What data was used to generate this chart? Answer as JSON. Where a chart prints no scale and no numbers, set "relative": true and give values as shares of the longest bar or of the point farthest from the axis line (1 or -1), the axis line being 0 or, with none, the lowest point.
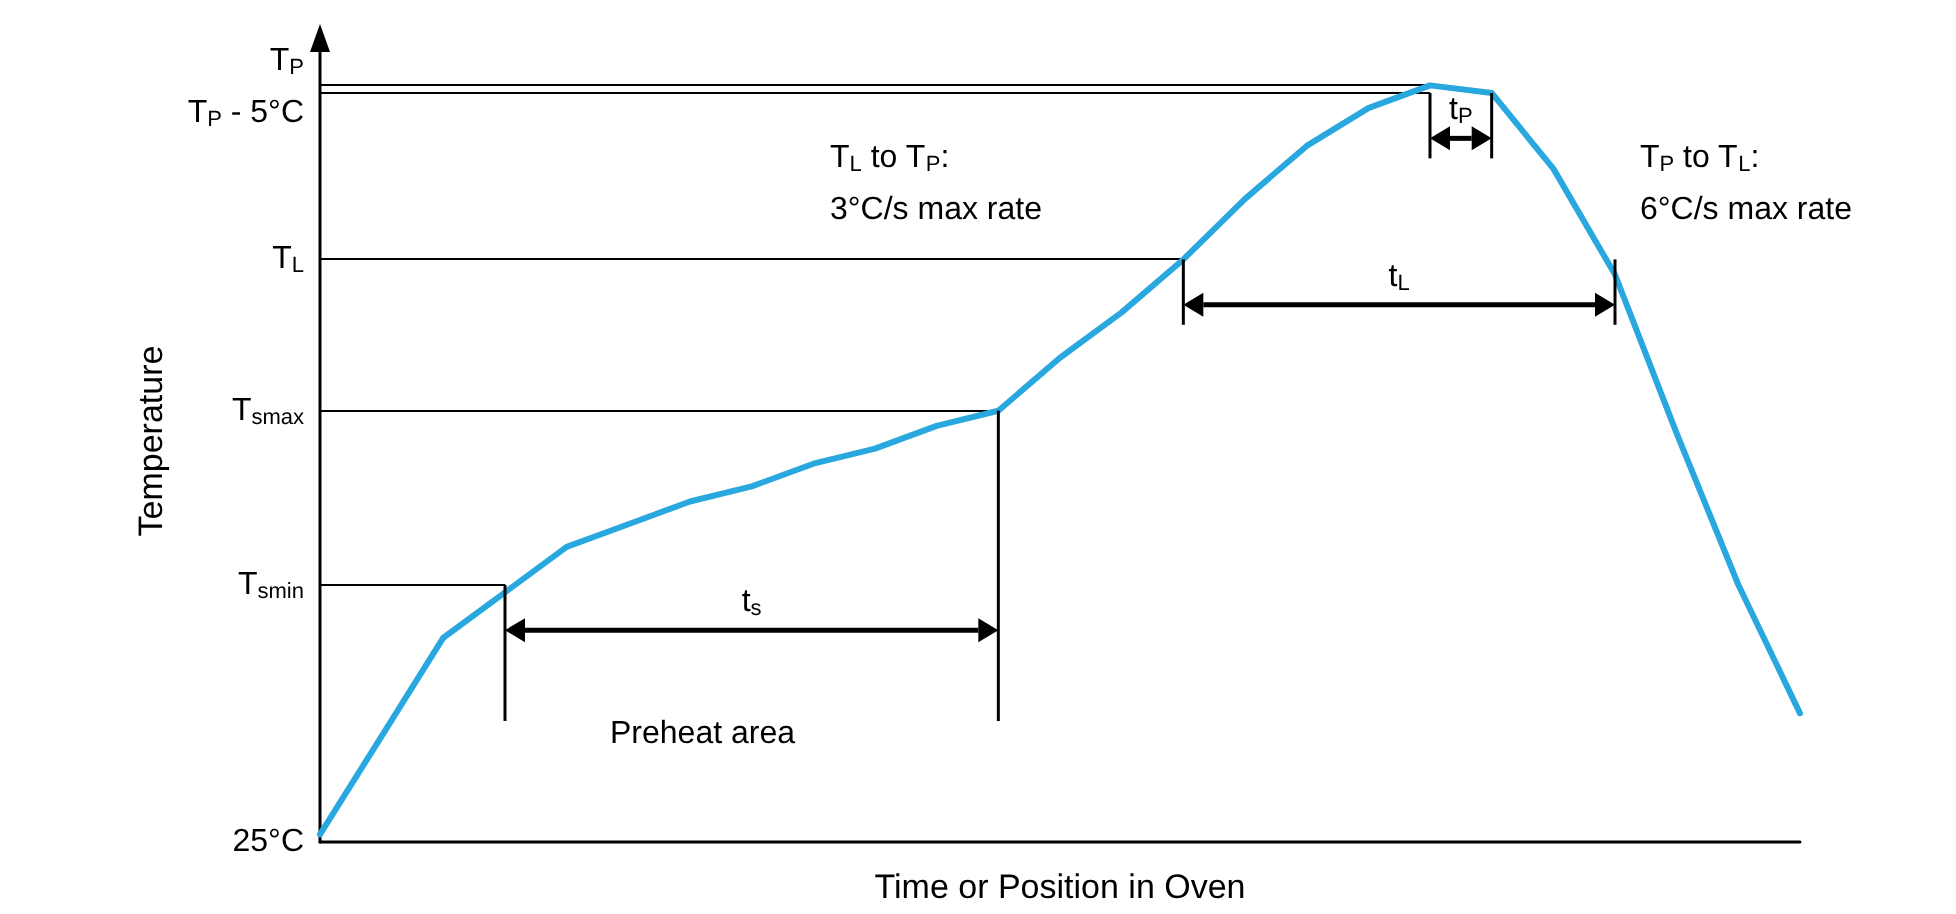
{
  "chart_data": {
    "type": "line",
    "relative": true,
    "xlabel": "Time or Position in Oven",
    "ylabel": "Temperature",
    "marker": "none",
    "line_style": "solid",
    "categories": [
      null,
      null,
      null,
      null,
      null,
      null,
      null,
      null,
      null,
      null,
      null,
      null,
      null,
      null,
      null,
      null,
      null,
      null,
      null,
      null,
      null,
      null,
      null,
      null,
      null
    ],
    "series": [
      {
        "color": "#29a8e0",
        "values": [
          0.01,
          0.14,
          0.27,
          0.33,
          0.39,
          0.42,
          0.45,
          0.47,
          0.5,
          0.52,
          0.55,
          0.57,
          0.64,
          0.7,
          0.77,
          0.85,
          0.92,
          0.97,
          1,
          0.99,
          0.89,
          0.75,
          0.54,
          0.34,
          0.17
        ]
      }
    ],
    "ref_lines": [
      {
        "axis": "y",
        "value": 1,
        "label": "T$_{P}$",
        "color": "#000000"
      },
      {
        "axis": "y",
        "value": 0.99,
        "label": "T$_{P}$ - 5°C",
        "color": "#000000"
      },
      {
        "axis": "y",
        "value": 0.77,
        "label": "T$_{L}$",
        "color": "#000000"
      },
      {
        "axis": "y",
        "value": 0.57,
        "label": "T$_{smax}$",
        "color": "#000000"
      },
      {
        "axis": "y",
        "value": 0.34,
        "label": "T$_{smin}$",
        "color": "#000000"
      },
      {
        "axis": "y",
        "value": 0,
        "label": "25°C",
        "color": "#000000"
      }
    ],
    "annotations": [
      "Preheat area",
      "T$_{L}$ to T$_{P}$:\n3°C/s max rate",
      "T$_{P}$ to T$_{L}$:\n6°C/s max rate",
      "t$_{s}$",
      "t$_{L}$",
      "t$_{P}$"
    ]
  }
}
